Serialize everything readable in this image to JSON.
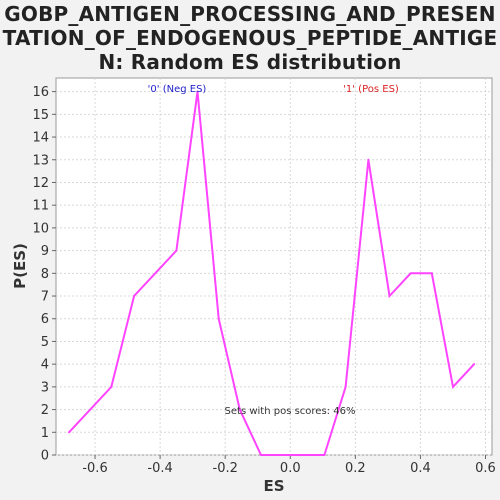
{
  "chart_data": {
    "type": "line",
    "title": "GOBP_ANTIGEN_PROCESSING_AND_PRESENTATION_OF_ENDOGENOUS_PEPTIDE_ANTIGEN: Random ES distribution",
    "title_lines": [
      "GOBP_ANTIGEN_PROCESSING_AND_PRESEN",
      "TATION_OF_ENDOGENOUS_PEPTIDE_ANTIGE",
      "N: Random ES distribution"
    ],
    "xlabel": "ES",
    "ylabel": "P(ES)",
    "xlim": [
      -0.72,
      0.62
    ],
    "ylim": [
      0,
      16.6
    ],
    "xticks": [
      -0.6,
      -0.4,
      -0.2,
      0.0,
      0.2,
      0.4,
      0.6
    ],
    "xtick_labels": [
      "-0.6",
      "-0.4",
      "-0.2",
      "0.0",
      "0.2",
      "0.4",
      "0.6"
    ],
    "yticks": [
      0,
      1,
      2,
      3,
      4,
      5,
      6,
      7,
      8,
      9,
      10,
      11,
      12,
      13,
      14,
      15,
      16
    ],
    "grid": true,
    "series": [
      {
        "color": "#ff44ff",
        "x": [
          -0.68,
          -0.55,
          -0.48,
          -0.35,
          -0.285,
          -0.22,
          -0.155,
          -0.09,
          -0.025,
          0.04,
          0.105,
          0.17,
          0.24,
          0.305,
          0.37,
          0.435,
          0.5,
          0.565
        ],
        "y": [
          1,
          3,
          7,
          9,
          16,
          6,
          2,
          0,
          0,
          0,
          0,
          3,
          13,
          7,
          8,
          8,
          3,
          4
        ]
      }
    ],
    "annotations": {
      "neg_label": "'0' (Neg ES)",
      "pos_label": "'1' (Pos ES)",
      "pos_scores": "Sets with pos scores: 46%"
    },
    "colors": {
      "neg_label": "#2222cc",
      "pos_label": "#dd2222",
      "annotation_text": "#333333",
      "line": "#ff44ff",
      "grid": "#d8d8d8"
    }
  }
}
